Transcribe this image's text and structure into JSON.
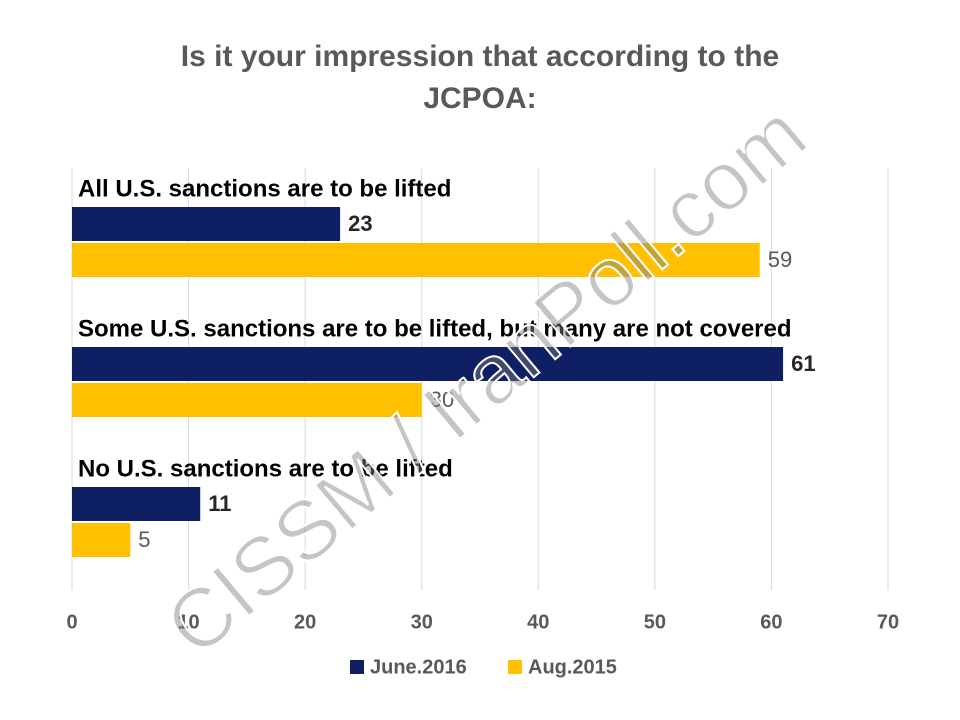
{
  "chart_data": {
    "type": "hbar",
    "title": "Is it your impression that according to the JCPOA:",
    "categories": [
      "All U.S. sanctions are to be lifted",
      "Some U.S. sanctions are to be lifted, but many are not covered",
      "No U.S. sanctions are to be lifted"
    ],
    "series": [
      {
        "name": "June.2016",
        "color": "#0f1f63",
        "values": [
          23,
          61,
          11
        ]
      },
      {
        "name": "Aug.2015",
        "color": "#ffc000",
        "values": [
          59,
          30,
          5
        ]
      }
    ],
    "xlim": [
      0,
      70
    ],
    "xticks": [
      0,
      10,
      20,
      30,
      40,
      50,
      60,
      70
    ],
    "grid": true,
    "legend": "bottom",
    "watermark": "CISSM / IranPoll.com"
  }
}
